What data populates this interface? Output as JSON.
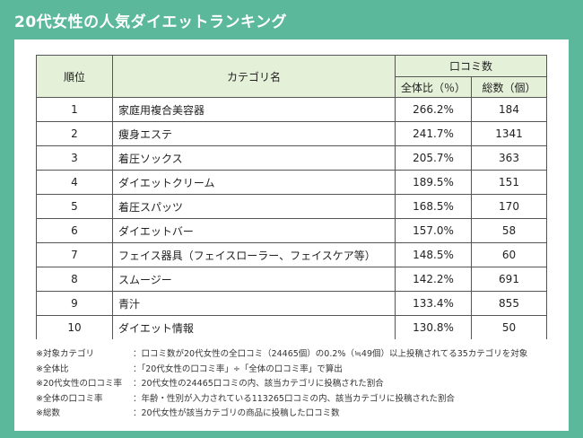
{
  "title": "20代女性の人気ダイエットランキング",
  "table": {
    "headers": {
      "rank": "順位",
      "category": "カテゴリ名",
      "reviews": "口コミ数",
      "share": "全体比（％）",
      "total": "総数（個）"
    },
    "rows": [
      {
        "rank": "1",
        "category": "家庭用複合美容器",
        "share": "266.2%",
        "total": "184"
      },
      {
        "rank": "2",
        "category": "痩身エステ",
        "share": "241.7%",
        "total": "1341"
      },
      {
        "rank": "3",
        "category": "着圧ソックス",
        "share": "205.7%",
        "total": "363"
      },
      {
        "rank": "4",
        "category": "ダイエットクリーム",
        "share": "189.5%",
        "total": "151"
      },
      {
        "rank": "5",
        "category": "着圧スパッツ",
        "share": "168.5%",
        "total": "170"
      },
      {
        "rank": "6",
        "category": "ダイエットバー",
        "share": "157.0%",
        "total": "58"
      },
      {
        "rank": "7",
        "category": "フェイス器具（フェイスローラー、フェイスケア等）",
        "share": "148.5%",
        "total": "60"
      },
      {
        "rank": "8",
        "category": "スムージー",
        "share": "142.2%",
        "total": "691"
      },
      {
        "rank": "9",
        "category": "青汁",
        "share": "133.4%",
        "total": "855"
      },
      {
        "rank": "10",
        "category": "ダイエット情報",
        "share": "130.8%",
        "total": "50"
      }
    ]
  },
  "notes": [
    {
      "label": "※対象カテゴリ",
      "text": "：口コミ数が20代女性の全口コミ（24465個）の0.2%（≒49個）以上投稿されてる35カテゴリを対象"
    },
    {
      "label": "※全体比",
      "text": "：「20代女性の口コミ率」÷「全体の口コミ率」で算出"
    },
    {
      "label": "※20代女性の口コミ率",
      "text": "：20代女性の24465口コミの内、該当カテゴリに投稿された割合"
    },
    {
      "label": "※全体の口コミ率",
      "text": "：年齢・性別が入力されている113265口コミの内、該当カテゴリに投稿された割合"
    },
    {
      "label": "※総数",
      "text": "：20代女性が該当カテゴリの商品に投稿した口コミ数"
    }
  ]
}
